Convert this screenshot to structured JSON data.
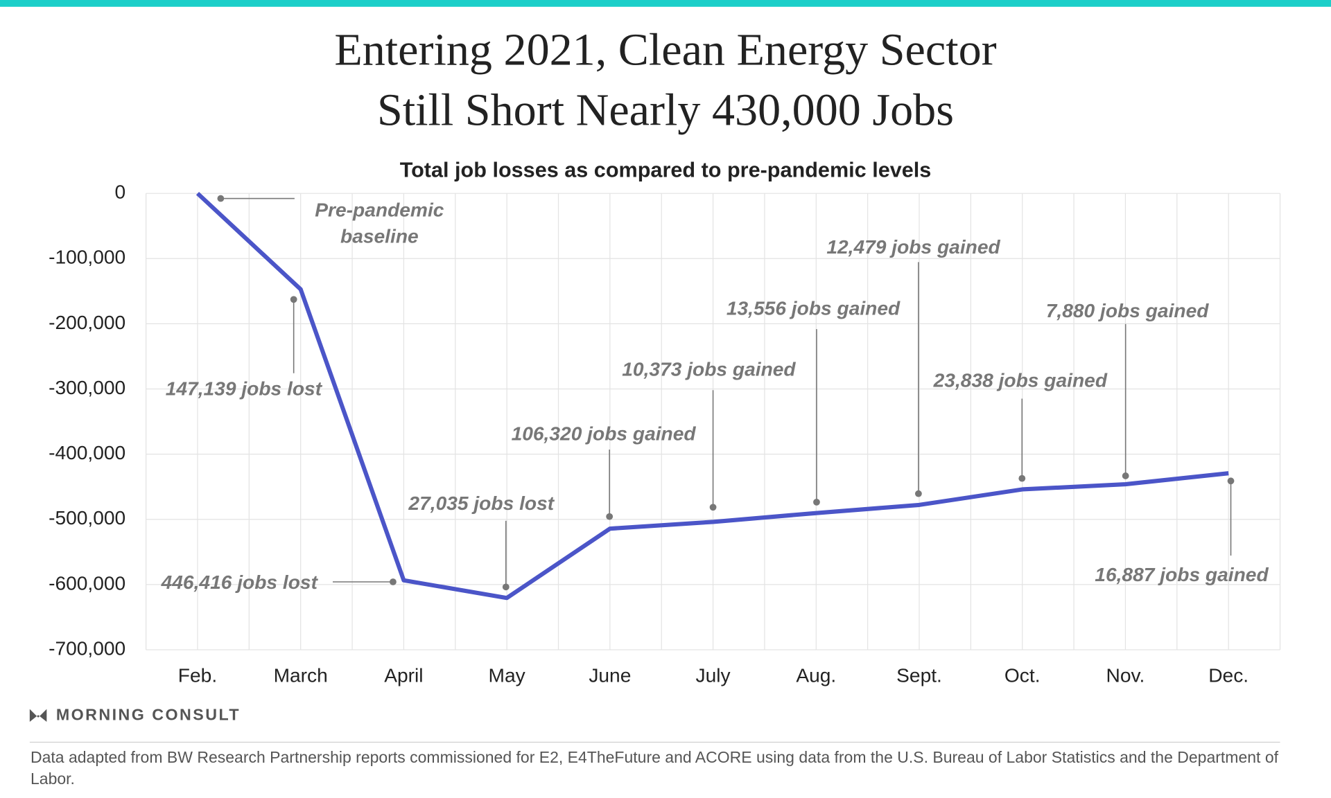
{
  "chart_data": {
    "type": "line",
    "title": [
      "Entering 2021, Clean Energy Sector",
      "Still Short Nearly 430,000 Jobs"
    ],
    "subtitle": "Total job losses as compared to pre-pandemic levels",
    "categories": [
      "Feb.",
      "March",
      "April",
      "May",
      "June",
      "July",
      "Aug.",
      "Sept.",
      "Oct.",
      "Nov.",
      "Dec."
    ],
    "series": [
      {
        "name": "Total job losses",
        "color": "#4b55c8",
        "values": [
          0,
          -147139,
          -593555,
          -620590,
          -514270,
          -503897,
          -490341,
          -477862,
          -454024,
          -446144,
          -429257
        ]
      }
    ],
    "ylim": [
      -700000,
      0
    ],
    "yticks": [
      {
        "value": -700000,
        "label": "-700,000"
      },
      {
        "value": -600000,
        "label": "-600,000"
      },
      {
        "value": -500000,
        "label": "-500,000"
      },
      {
        "value": -400000,
        "label": "-400,000"
      },
      {
        "value": -300000,
        "label": "-300,000"
      },
      {
        "value": -200000,
        "label": "-200,000"
      },
      {
        "value": -100000,
        "label": "-100,000"
      },
      0
    ],
    "grid": true,
    "annotations": [
      [
        "Pre-pandemic",
        "baseline"
      ],
      [
        "147,139 jobs lost"
      ],
      [
        "446,416 jobs lost"
      ],
      [
        "27,035 jobs lost"
      ],
      [
        "106,320 jobs gained"
      ],
      [
        "10,373 jobs gained"
      ],
      [
        "13,556 jobs gained"
      ],
      [
        "12,479 jobs gained"
      ],
      [
        "23,838 jobs gained"
      ],
      [
        "7,880 jobs gained"
      ],
      [
        "16,887 jobs gained"
      ]
    ],
    "source": "MORNING CONSULT",
    "footnote": "Data adapted from BW Research Partnership reports commissioned for E2, E4TheFuture and ACORE using data from the U.S. Bureau of Labor Statistics and the Department of Labor."
  }
}
